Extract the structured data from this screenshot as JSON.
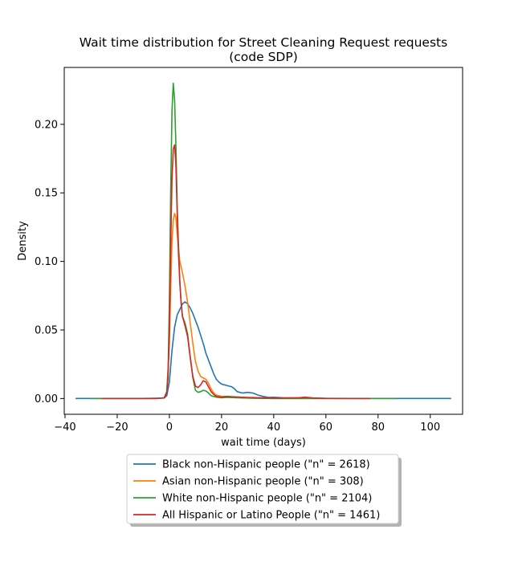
{
  "chart_data": {
    "type": "line",
    "title_line1": "Wait time distribution  for Street Cleaning Request requests",
    "title_line2": "(code SDP)",
    "xlabel": "wait time (days)",
    "ylabel": "Density",
    "xlim": [
      -40.3,
      112.4
    ],
    "ylim": [
      -0.0115,
      0.2415
    ],
    "xticks": [
      -40,
      -20,
      0,
      20,
      40,
      60,
      80,
      100
    ],
    "yticks": [
      0.0,
      0.05,
      0.1,
      0.15,
      0.2
    ],
    "ytick_labels": [
      "0.00",
      "0.05",
      "0.10",
      "0.15",
      "0.20"
    ],
    "legend_position": "bottom-center",
    "series": [
      {
        "name": "Black non-Hispanic people (\"n\" = 2618)",
        "color": "#1f77b4",
        "points": [
          [
            -36,
            0
          ],
          [
            -10,
            0
          ],
          [
            -2,
            0.0003
          ],
          [
            -1,
            0.002
          ],
          [
            0,
            0.012
          ],
          [
            1,
            0.035
          ],
          [
            2,
            0.052
          ],
          [
            3,
            0.061
          ],
          [
            4,
            0.065
          ],
          [
            5,
            0.069
          ],
          [
            6,
            0.0705
          ],
          [
            7,
            0.069
          ],
          [
            8,
            0.066
          ],
          [
            9,
            0.062
          ],
          [
            10,
            0.057
          ],
          [
            11,
            0.052
          ],
          [
            12,
            0.046
          ],
          [
            13,
            0.04
          ],
          [
            14,
            0.033
          ],
          [
            15,
            0.028
          ],
          [
            16,
            0.023
          ],
          [
            17,
            0.018
          ],
          [
            18,
            0.014
          ],
          [
            19,
            0.012
          ],
          [
            20,
            0.0105
          ],
          [
            22,
            0.0095
          ],
          [
            24,
            0.0085
          ],
          [
            25,
            0.007
          ],
          [
            26,
            0.005
          ],
          [
            27,
            0.0045
          ],
          [
            28,
            0.004
          ],
          [
            30,
            0.0045
          ],
          [
            32,
            0.004
          ],
          [
            34,
            0.0025
          ],
          [
            36,
            0.0015
          ],
          [
            38,
            0.0008
          ],
          [
            40,
            0.0009
          ],
          [
            42,
            0.0007
          ],
          [
            45,
            0.0003
          ],
          [
            50,
            0.0003
          ],
          [
            52,
            0.0005
          ],
          [
            55,
            0.0002
          ],
          [
            60,
            0.0001
          ],
          [
            70,
            0
          ],
          [
            108,
            0
          ]
        ]
      },
      {
        "name": "Asian non-Hispanic people (\"n\" = 308)",
        "color": "#ff7f0e",
        "points": [
          [
            -27,
            0
          ],
          [
            -5,
            0
          ],
          [
            -2,
            0.0005
          ],
          [
            -1,
            0.005
          ],
          [
            0,
            0.04
          ],
          [
            0.5,
            0.08
          ],
          [
            1,
            0.115
          ],
          [
            1.5,
            0.13
          ],
          [
            2,
            0.135
          ],
          [
            2.5,
            0.132
          ],
          [
            3,
            0.12
          ],
          [
            4,
            0.1
          ],
          [
            5,
            0.092
          ],
          [
            6,
            0.082
          ],
          [
            7,
            0.07
          ],
          [
            8,
            0.055
          ],
          [
            9,
            0.04
          ],
          [
            10,
            0.027
          ],
          [
            11,
            0.02
          ],
          [
            12,
            0.016
          ],
          [
            13,
            0.015
          ],
          [
            14,
            0.014
          ],
          [
            15,
            0.011
          ],
          [
            16,
            0.007
          ],
          [
            17,
            0.004
          ],
          [
            18,
            0.0025
          ],
          [
            20,
            0.0015
          ],
          [
            22,
            0.0015
          ],
          [
            25,
            0.001
          ],
          [
            28,
            0.0005
          ],
          [
            35,
            0
          ],
          [
            60,
            0
          ],
          [
            77,
            0
          ]
        ]
      },
      {
        "name": "White non-Hispanic people (\"n\" = 2104)",
        "color": "#2ca02c",
        "points": [
          [
            -30,
            0
          ],
          [
            -5,
            0
          ],
          [
            -2,
            0.0005
          ],
          [
            -1,
            0.005
          ],
          [
            -0.5,
            0.02
          ],
          [
            0,
            0.07
          ],
          [
            0.5,
            0.15
          ],
          [
            1,
            0.21
          ],
          [
            1.5,
            0.23
          ],
          [
            2,
            0.218
          ],
          [
            2.5,
            0.185
          ],
          [
            3,
            0.14
          ],
          [
            3.5,
            0.11
          ],
          [
            4,
            0.085
          ],
          [
            4.5,
            0.07
          ],
          [
            5,
            0.06
          ],
          [
            6,
            0.055
          ],
          [
            7,
            0.047
          ],
          [
            8,
            0.03
          ],
          [
            9,
            0.015
          ],
          [
            10,
            0.006
          ],
          [
            11,
            0.0045
          ],
          [
            12,
            0.005
          ],
          [
            13,
            0.006
          ],
          [
            14,
            0.0055
          ],
          [
            15,
            0.004
          ],
          [
            16,
            0.002
          ],
          [
            18,
            0.001
          ],
          [
            20,
            0.0005
          ],
          [
            22,
            0.0008
          ],
          [
            25,
            0.0006
          ],
          [
            30,
            0.0003
          ],
          [
            40,
            0
          ],
          [
            70,
            0
          ],
          [
            87,
            0
          ]
        ]
      },
      {
        "name": "All Hispanic or Latino People (\"n\" = 1461)",
        "color": "#d62728",
        "points": [
          [
            -26,
            0
          ],
          [
            -5,
            0
          ],
          [
            -2,
            0.0005
          ],
          [
            -1,
            0.004
          ],
          [
            -0.5,
            0.015
          ],
          [
            0,
            0.05
          ],
          [
            0.5,
            0.11
          ],
          [
            1,
            0.16
          ],
          [
            1.5,
            0.182
          ],
          [
            2,
            0.185
          ],
          [
            2.5,
            0.17
          ],
          [
            3,
            0.135
          ],
          [
            3.5,
            0.105
          ],
          [
            4,
            0.085
          ],
          [
            4.5,
            0.07
          ],
          [
            5,
            0.06
          ],
          [
            6,
            0.053
          ],
          [
            7,
            0.045
          ],
          [
            8,
            0.03
          ],
          [
            9,
            0.016
          ],
          [
            10,
            0.009
          ],
          [
            11,
            0.008
          ],
          [
            12,
            0.01
          ],
          [
            13,
            0.013
          ],
          [
            14,
            0.012
          ],
          [
            15,
            0.0085
          ],
          [
            16,
            0.005
          ],
          [
            17,
            0.003
          ],
          [
            18,
            0.0015
          ],
          [
            20,
            0.001
          ],
          [
            22,
            0.0015
          ],
          [
            25,
            0.0012
          ],
          [
            30,
            0.0008
          ],
          [
            40,
            0.0003
          ],
          [
            50,
            0.0006
          ],
          [
            52,
            0.001
          ],
          [
            55,
            0.0004
          ],
          [
            60,
            0.0001
          ],
          [
            77,
            0
          ]
        ]
      }
    ]
  }
}
